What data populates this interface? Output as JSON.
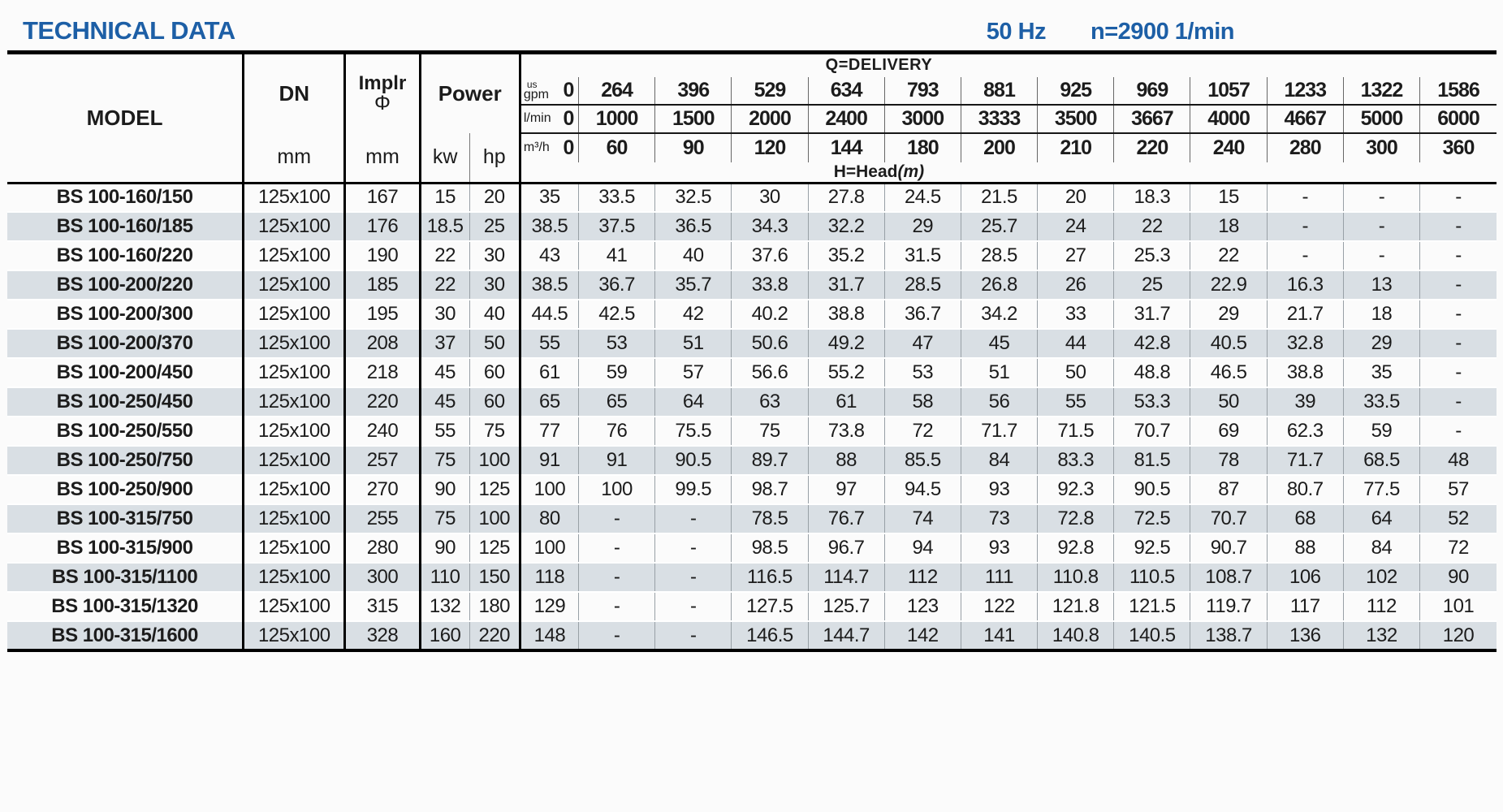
{
  "page": {
    "title": "TECHNICAL DATA",
    "frequency": "50 Hz",
    "speed": "n=2900 1/min"
  },
  "colors": {
    "title_blue": "#1d5fa6",
    "stripe": "#d9dfe4"
  },
  "table": {
    "headers": {
      "model": "MODEL",
      "dn": "DN",
      "dn_unit": "mm",
      "implr": "Implr",
      "implr_symbol": "Φ",
      "implr_unit": "mm",
      "power": "Power",
      "kw": "kw",
      "hp": "hp",
      "delivery": "Q=DELIVERY",
      "unit_us": "us",
      "unit_gpm": "gpm",
      "unit_lmin": "l/min",
      "unit_m3h": "m³/h",
      "head": "H=Head",
      "head_unit": "(m)"
    },
    "q_gpm": [
      "0",
      "264",
      "396",
      "529",
      "634",
      "793",
      "881",
      "925",
      "969",
      "1057",
      "1233",
      "1322",
      "1586"
    ],
    "q_lmin": [
      "0",
      "1000",
      "1500",
      "2000",
      "2400",
      "3000",
      "3333",
      "3500",
      "3667",
      "4000",
      "4667",
      "5000",
      "6000"
    ],
    "q_m3h": [
      "0",
      "60",
      "90",
      "120",
      "144",
      "180",
      "200",
      "210",
      "220",
      "240",
      "280",
      "300",
      "360"
    ],
    "rows": [
      {
        "model": "BS 100-160/150",
        "dn": "125x100",
        "implr": "167",
        "kw": "15",
        "hp": "20",
        "head": [
          "35",
          "33.5",
          "32.5",
          "30",
          "27.8",
          "24.5",
          "21.5",
          "20",
          "18.3",
          "15",
          "-",
          "-",
          "-"
        ]
      },
      {
        "model": "BS 100-160/185",
        "dn": "125x100",
        "implr": "176",
        "kw": "18.5",
        "hp": "25",
        "head": [
          "38.5",
          "37.5",
          "36.5",
          "34.3",
          "32.2",
          "29",
          "25.7",
          "24",
          "22",
          "18",
          "-",
          "-",
          "-"
        ]
      },
      {
        "model": "BS 100-160/220",
        "dn": "125x100",
        "implr": "190",
        "kw": "22",
        "hp": "30",
        "head": [
          "43",
          "41",
          "40",
          "37.6",
          "35.2",
          "31.5",
          "28.5",
          "27",
          "25.3",
          "22",
          "-",
          "-",
          "-"
        ]
      },
      {
        "model": "BS 100-200/220",
        "dn": "125x100",
        "implr": "185",
        "kw": "22",
        "hp": "30",
        "head": [
          "38.5",
          "36.7",
          "35.7",
          "33.8",
          "31.7",
          "28.5",
          "26.8",
          "26",
          "25",
          "22.9",
          "16.3",
          "13",
          "-"
        ]
      },
      {
        "model": "BS 100-200/300",
        "dn": "125x100",
        "implr": "195",
        "kw": "30",
        "hp": "40",
        "head": [
          "44.5",
          "42.5",
          "42",
          "40.2",
          "38.8",
          "36.7",
          "34.2",
          "33",
          "31.7",
          "29",
          "21.7",
          "18",
          "-"
        ]
      },
      {
        "model": "BS 100-200/370",
        "dn": "125x100",
        "implr": "208",
        "kw": "37",
        "hp": "50",
        "head": [
          "55",
          "53",
          "51",
          "50.6",
          "49.2",
          "47",
          "45",
          "44",
          "42.8",
          "40.5",
          "32.8",
          "29",
          "-"
        ]
      },
      {
        "model": "BS 100-200/450",
        "dn": "125x100",
        "implr": "218",
        "kw": "45",
        "hp": "60",
        "head": [
          "61",
          "59",
          "57",
          "56.6",
          "55.2",
          "53",
          "51",
          "50",
          "48.8",
          "46.5",
          "38.8",
          "35",
          "-"
        ]
      },
      {
        "model": "BS 100-250/450",
        "dn": "125x100",
        "implr": "220",
        "kw": "45",
        "hp": "60",
        "head": [
          "65",
          "65",
          "64",
          "63",
          "61",
          "58",
          "56",
          "55",
          "53.3",
          "50",
          "39",
          "33.5",
          "-"
        ]
      },
      {
        "model": "BS 100-250/550",
        "dn": "125x100",
        "implr": "240",
        "kw": "55",
        "hp": "75",
        "head": [
          "77",
          "76",
          "75.5",
          "75",
          "73.8",
          "72",
          "71.7",
          "71.5",
          "70.7",
          "69",
          "62.3",
          "59",
          "-"
        ]
      },
      {
        "model": "BS 100-250/750",
        "dn": "125x100",
        "implr": "257",
        "kw": "75",
        "hp": "100",
        "head": [
          "91",
          "91",
          "90.5",
          "89.7",
          "88",
          "85.5",
          "84",
          "83.3",
          "81.5",
          "78",
          "71.7",
          "68.5",
          "48"
        ]
      },
      {
        "model": "BS 100-250/900",
        "dn": "125x100",
        "implr": "270",
        "kw": "90",
        "hp": "125",
        "head": [
          "100",
          "100",
          "99.5",
          "98.7",
          "97",
          "94.5",
          "93",
          "92.3",
          "90.5",
          "87",
          "80.7",
          "77.5",
          "57"
        ]
      },
      {
        "model": "BS 100-315/750",
        "dn": "125x100",
        "implr": "255",
        "kw": "75",
        "hp": "100",
        "head": [
          "80",
          "-",
          "-",
          "78.5",
          "76.7",
          "74",
          "73",
          "72.8",
          "72.5",
          "70.7",
          "68",
          "64",
          "52"
        ]
      },
      {
        "model": "BS 100-315/900",
        "dn": "125x100",
        "implr": "280",
        "kw": "90",
        "hp": "125",
        "head": [
          "100",
          "-",
          "-",
          "98.5",
          "96.7",
          "94",
          "93",
          "92.8",
          "92.5",
          "90.7",
          "88",
          "84",
          "72"
        ]
      },
      {
        "model": "BS 100-315/1100",
        "dn": "125x100",
        "implr": "300",
        "kw": "110",
        "hp": "150",
        "head": [
          "118",
          "-",
          "-",
          "116.5",
          "114.7",
          "112",
          "111",
          "110.8",
          "110.5",
          "108.7",
          "106",
          "102",
          "90"
        ]
      },
      {
        "model": "BS 100-315/1320",
        "dn": "125x100",
        "implr": "315",
        "kw": "132",
        "hp": "180",
        "head": [
          "129",
          "-",
          "-",
          "127.5",
          "125.7",
          "123",
          "122",
          "121.8",
          "121.5",
          "119.7",
          "117",
          "112",
          "101"
        ]
      },
      {
        "model": "BS 100-315/1600",
        "dn": "125x100",
        "implr": "328",
        "kw": "160",
        "hp": "220",
        "head": [
          "148",
          "-",
          "-",
          "146.5",
          "144.7",
          "142",
          "141",
          "140.8",
          "140.5",
          "138.7",
          "136",
          "132",
          "120"
        ]
      }
    ]
  }
}
